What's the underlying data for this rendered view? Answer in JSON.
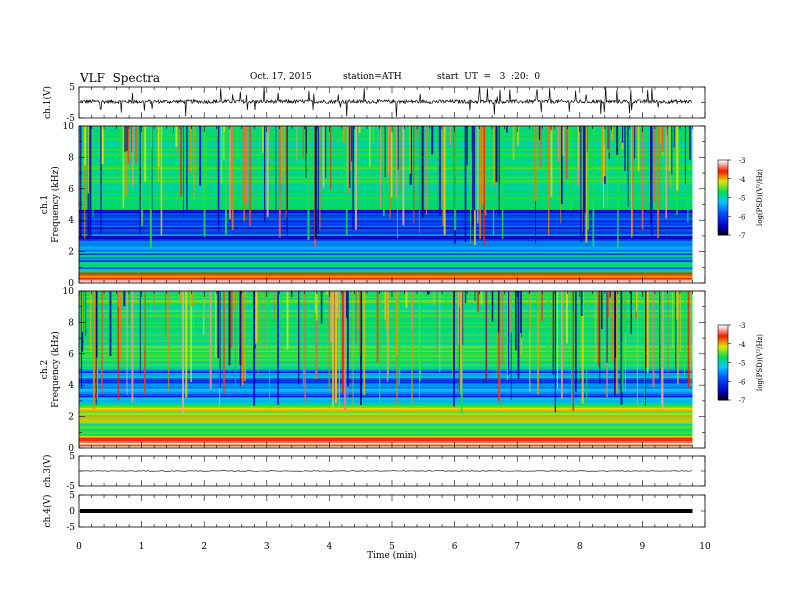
{
  "header": {
    "title": "VLF  Spectra",
    "date": "Oct. 17, 2015",
    "station": "station=ATH",
    "start": "start  UT  =   3  :20:  0"
  },
  "chart_data": [
    {
      "id": "ch1",
      "type": "line",
      "ylabel": "ch.1(V)",
      "ylim": [
        -5,
        5
      ],
      "yticks": [
        "5",
        "-5"
      ],
      "description_level": 0.3,
      "trace": "noisy waveform with frequent spikes"
    },
    {
      "id": "spec1",
      "type": "heatmap",
      "ylabel": [
        "ch.1",
        "Frequency  (kHz)"
      ],
      "ylim": [
        0,
        10
      ],
      "yticks": [
        "0",
        "2",
        "4",
        "6",
        "8",
        "10"
      ],
      "colorbar": {
        "label": "log(PSD)(V²/Hz)",
        "ticks": [
          "-3",
          "-4",
          "-5",
          "-6",
          "-7"
        ],
        "range": [
          -7,
          -3
        ]
      }
    },
    {
      "id": "spec2",
      "type": "heatmap",
      "ylabel": [
        "ch.2",
        "Frequency  (kHz)"
      ],
      "ylim": [
        0,
        10
      ],
      "yticks": [
        "0",
        "2",
        "4",
        "6",
        "8",
        "10"
      ],
      "colorbar": {
        "label": "log(PSD)(V²/Hz)",
        "ticks": [
          "-3",
          "-4",
          "-5",
          "-6",
          "-7"
        ],
        "range": [
          -7,
          -3
        ]
      }
    },
    {
      "id": "ch3",
      "type": "line",
      "ylabel": "ch.3(V)",
      "ylim": [
        -5,
        5
      ],
      "yticks": [
        "5",
        "-5"
      ],
      "level": 0
    },
    {
      "id": "ch4",
      "type": "line",
      "ylabel": "ch.4(V)",
      "ylim": [
        -5,
        5
      ],
      "yticks": [
        "5",
        "0",
        "-5"
      ],
      "level": 0
    }
  ],
  "xaxis": {
    "label": "Time  (min)",
    "range": [
      0,
      10
    ],
    "data_end": 9.8,
    "ticks": [
      "0",
      "1",
      "2",
      "3",
      "4",
      "5",
      "6",
      "7",
      "8",
      "9",
      "10"
    ]
  }
}
